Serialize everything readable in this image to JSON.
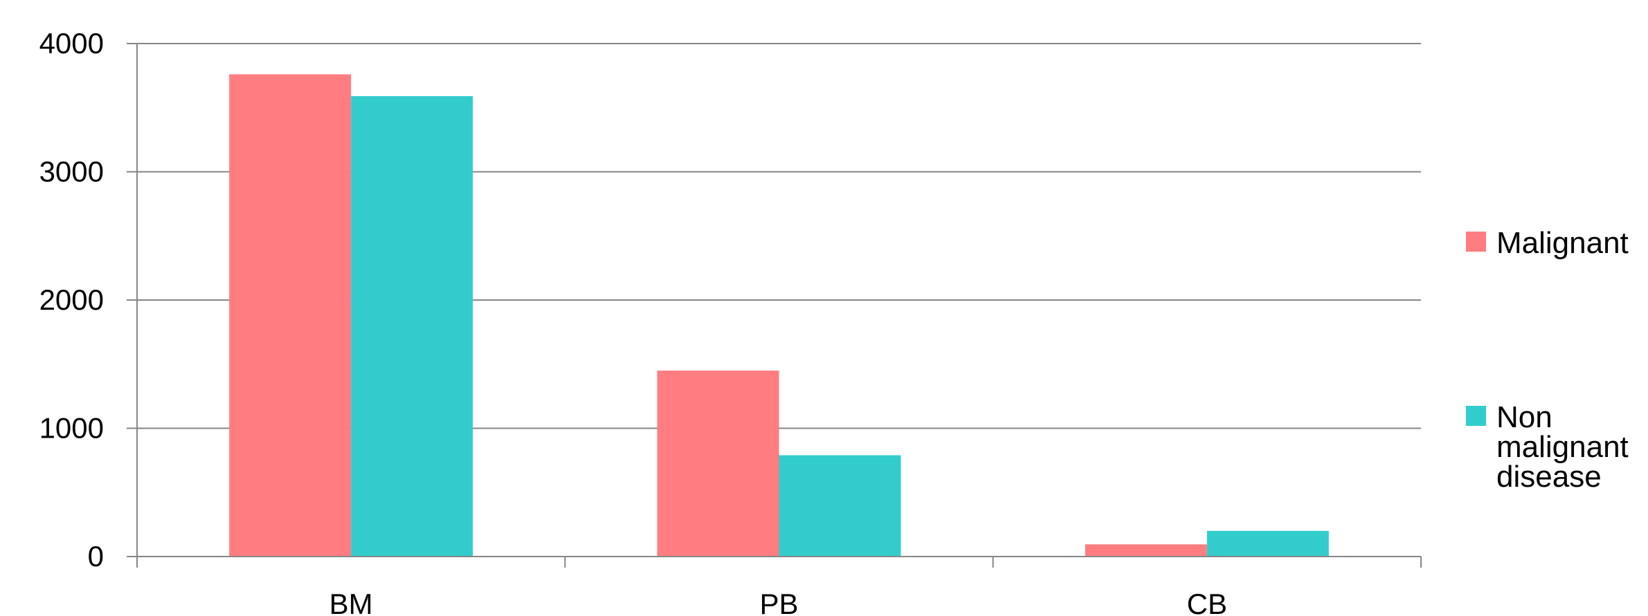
{
  "chart_data": {
    "type": "bar",
    "categories": [
      "BM",
      "PB",
      "CB"
    ],
    "series": [
      {
        "name": "Malignant",
        "color": "#FF7C80",
        "values": [
          3760,
          1450,
          95
        ]
      },
      {
        "name": "Non malignant disease",
        "color": "#33CCCC",
        "values": [
          3590,
          790,
          200
        ]
      }
    ],
    "ylim": [
      0,
      4000
    ],
    "yticks": [
      0,
      1000,
      2000,
      3000,
      4000
    ],
    "grid": true,
    "legend_position": "right",
    "legend_labels": [
      [
        "Malignant"
      ],
      [
        "Non",
        "malignant",
        "disease"
      ]
    ]
  }
}
